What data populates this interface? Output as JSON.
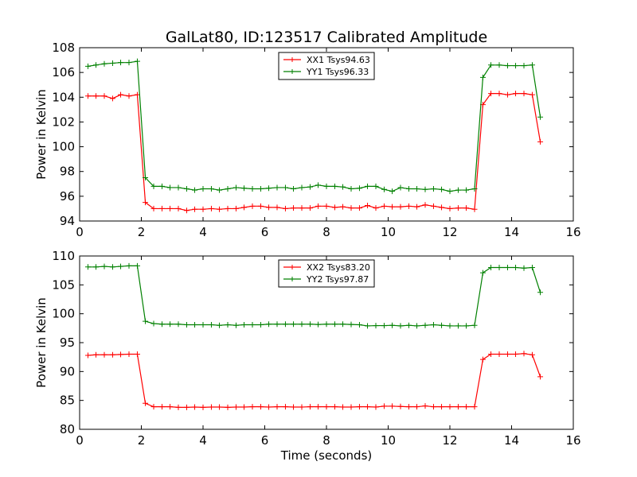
{
  "title": "GalLat80, ID:123517 Calibrated Amplitude",
  "chart_data": [
    {
      "type": "line",
      "title": "GalLat80, ID:123517 Calibrated Amplitude",
      "xlabel": "",
      "ylabel": "Power in Kelvin",
      "xlim": [
        0,
        16
      ],
      "ylim": [
        94,
        108
      ],
      "xticks": [
        0,
        2,
        4,
        6,
        8,
        10,
        12,
        14,
        16
      ],
      "yticks": [
        94,
        96,
        98,
        100,
        102,
        104,
        106,
        108
      ],
      "legend_position": "top-center",
      "series": [
        {
          "name": "XX1 Tsys94.63",
          "color": "#ff0000",
          "x": [
            0.27,
            0.53,
            0.8,
            1.07,
            1.33,
            1.6,
            1.87,
            2.13,
            2.4,
            2.67,
            2.93,
            3.2,
            3.47,
            3.73,
            4.0,
            4.27,
            4.53,
            4.8,
            5.07,
            5.33,
            5.6,
            5.87,
            6.13,
            6.4,
            6.67,
            6.93,
            7.2,
            7.47,
            7.73,
            8.0,
            8.27,
            8.53,
            8.8,
            9.07,
            9.33,
            9.6,
            9.87,
            10.13,
            10.4,
            10.67,
            10.93,
            11.2,
            11.47,
            11.73,
            12.0,
            12.27,
            12.53,
            12.8,
            13.07,
            13.33,
            13.6,
            13.87,
            14.13,
            14.4,
            14.67,
            14.93
          ],
          "y": [
            104.1,
            104.1,
            104.1,
            103.9,
            104.2,
            104.1,
            104.2,
            95.5,
            95.0,
            95.0,
            95.0,
            95.0,
            94.85,
            94.95,
            94.95,
            95.0,
            94.95,
            95.0,
            95.0,
            95.1,
            95.2,
            95.2,
            95.1,
            95.1,
            95.0,
            95.05,
            95.05,
            95.05,
            95.2,
            95.2,
            95.1,
            95.15,
            95.05,
            95.05,
            95.25,
            95.05,
            95.2,
            95.15,
            95.15,
            95.2,
            95.15,
            95.3,
            95.2,
            95.1,
            95.0,
            95.05,
            95.05,
            94.95,
            103.4,
            104.3,
            104.3,
            104.2,
            104.3,
            104.3,
            104.2,
            100.4
          ]
        },
        {
          "name": "YY1 Tsys96.33",
          "color": "#008000",
          "x": [
            0.27,
            0.53,
            0.8,
            1.07,
            1.33,
            1.6,
            1.87,
            2.13,
            2.4,
            2.67,
            2.93,
            3.2,
            3.47,
            3.73,
            4.0,
            4.27,
            4.53,
            4.8,
            5.07,
            5.33,
            5.6,
            5.87,
            6.13,
            6.4,
            6.67,
            6.93,
            7.2,
            7.47,
            7.73,
            8.0,
            8.27,
            8.53,
            8.8,
            9.07,
            9.33,
            9.6,
            9.87,
            10.13,
            10.4,
            10.67,
            10.93,
            11.2,
            11.47,
            11.73,
            12.0,
            12.27,
            12.53,
            12.8,
            13.07,
            13.33,
            13.6,
            13.87,
            14.13,
            14.4,
            14.67,
            14.93
          ],
          "y": [
            106.5,
            106.6,
            106.7,
            106.75,
            106.8,
            106.8,
            106.9,
            97.5,
            96.8,
            96.8,
            96.7,
            96.7,
            96.6,
            96.5,
            96.6,
            96.6,
            96.5,
            96.6,
            96.7,
            96.65,
            96.6,
            96.6,
            96.65,
            96.7,
            96.7,
            96.6,
            96.7,
            96.75,
            96.9,
            96.8,
            96.8,
            96.75,
            96.6,
            96.65,
            96.8,
            96.8,
            96.55,
            96.4,
            96.7,
            96.6,
            96.6,
            96.55,
            96.6,
            96.55,
            96.4,
            96.5,
            96.5,
            96.6,
            105.6,
            106.6,
            106.6,
            106.55,
            106.55,
            106.55,
            106.6,
            102.4
          ]
        }
      ]
    },
    {
      "type": "line",
      "title": "",
      "xlabel": "Time (seconds)",
      "ylabel": "Power in Kelvin",
      "xlim": [
        0,
        16
      ],
      "ylim": [
        80,
        110
      ],
      "xticks": [
        0,
        2,
        4,
        6,
        8,
        10,
        12,
        14,
        16
      ],
      "yticks": [
        80,
        85,
        90,
        95,
        100,
        105,
        110
      ],
      "legend_position": "top-center",
      "series": [
        {
          "name": "XX2 Tsys83.20",
          "color": "#ff0000",
          "x": [
            0.27,
            0.53,
            0.8,
            1.07,
            1.33,
            1.6,
            1.87,
            2.13,
            2.4,
            2.67,
            2.93,
            3.2,
            3.47,
            3.73,
            4.0,
            4.27,
            4.53,
            4.8,
            5.07,
            5.33,
            5.6,
            5.87,
            6.13,
            6.4,
            6.67,
            6.93,
            7.2,
            7.47,
            7.73,
            8.0,
            8.27,
            8.53,
            8.8,
            9.07,
            9.33,
            9.6,
            9.87,
            10.13,
            10.4,
            10.67,
            10.93,
            11.2,
            11.47,
            11.73,
            12.0,
            12.27,
            12.53,
            12.8,
            13.07,
            13.33,
            13.6,
            13.87,
            14.13,
            14.4,
            14.67,
            14.93
          ],
          "y": [
            92.8,
            92.9,
            92.9,
            92.9,
            92.95,
            93.0,
            93.0,
            84.5,
            83.9,
            83.9,
            83.9,
            83.8,
            83.8,
            83.85,
            83.8,
            83.85,
            83.85,
            83.8,
            83.85,
            83.85,
            83.9,
            83.9,
            83.85,
            83.9,
            83.9,
            83.85,
            83.85,
            83.9,
            83.9,
            83.9,
            83.9,
            83.85,
            83.85,
            83.9,
            83.9,
            83.85,
            84.0,
            84.0,
            83.95,
            83.9,
            83.9,
            84.05,
            83.9,
            83.9,
            83.9,
            83.9,
            83.9,
            83.9,
            92.1,
            93.0,
            93.0,
            93.0,
            93.0,
            93.1,
            92.9,
            89.1
          ]
        },
        {
          "name": "YY2 Tsys97.87",
          "color": "#008000",
          "x": [
            0.27,
            0.53,
            0.8,
            1.07,
            1.33,
            1.6,
            1.87,
            2.13,
            2.4,
            2.67,
            2.93,
            3.2,
            3.47,
            3.73,
            4.0,
            4.27,
            4.53,
            4.8,
            5.07,
            5.33,
            5.6,
            5.87,
            6.13,
            6.4,
            6.67,
            6.93,
            7.2,
            7.47,
            7.73,
            8.0,
            8.27,
            8.53,
            8.8,
            9.07,
            9.33,
            9.6,
            9.87,
            10.13,
            10.4,
            10.67,
            10.93,
            11.2,
            11.47,
            11.73,
            12.0,
            12.27,
            12.53,
            12.8,
            13.07,
            13.33,
            13.6,
            13.87,
            14.13,
            14.4,
            14.67,
            14.93
          ],
          "y": [
            108.1,
            108.1,
            108.2,
            108.1,
            108.2,
            108.3,
            108.3,
            98.7,
            98.3,
            98.2,
            98.2,
            98.2,
            98.1,
            98.1,
            98.1,
            98.1,
            98.0,
            98.1,
            98.0,
            98.1,
            98.1,
            98.1,
            98.2,
            98.2,
            98.2,
            98.2,
            98.2,
            98.2,
            98.15,
            98.2,
            98.2,
            98.2,
            98.15,
            98.1,
            97.9,
            97.95,
            97.95,
            98.0,
            97.9,
            98.0,
            97.9,
            98.0,
            98.1,
            98.0,
            97.9,
            97.9,
            97.9,
            98.0,
            107.1,
            108.0,
            108.0,
            108.0,
            108.0,
            107.9,
            108.0,
            103.7
          ]
        }
      ]
    }
  ]
}
